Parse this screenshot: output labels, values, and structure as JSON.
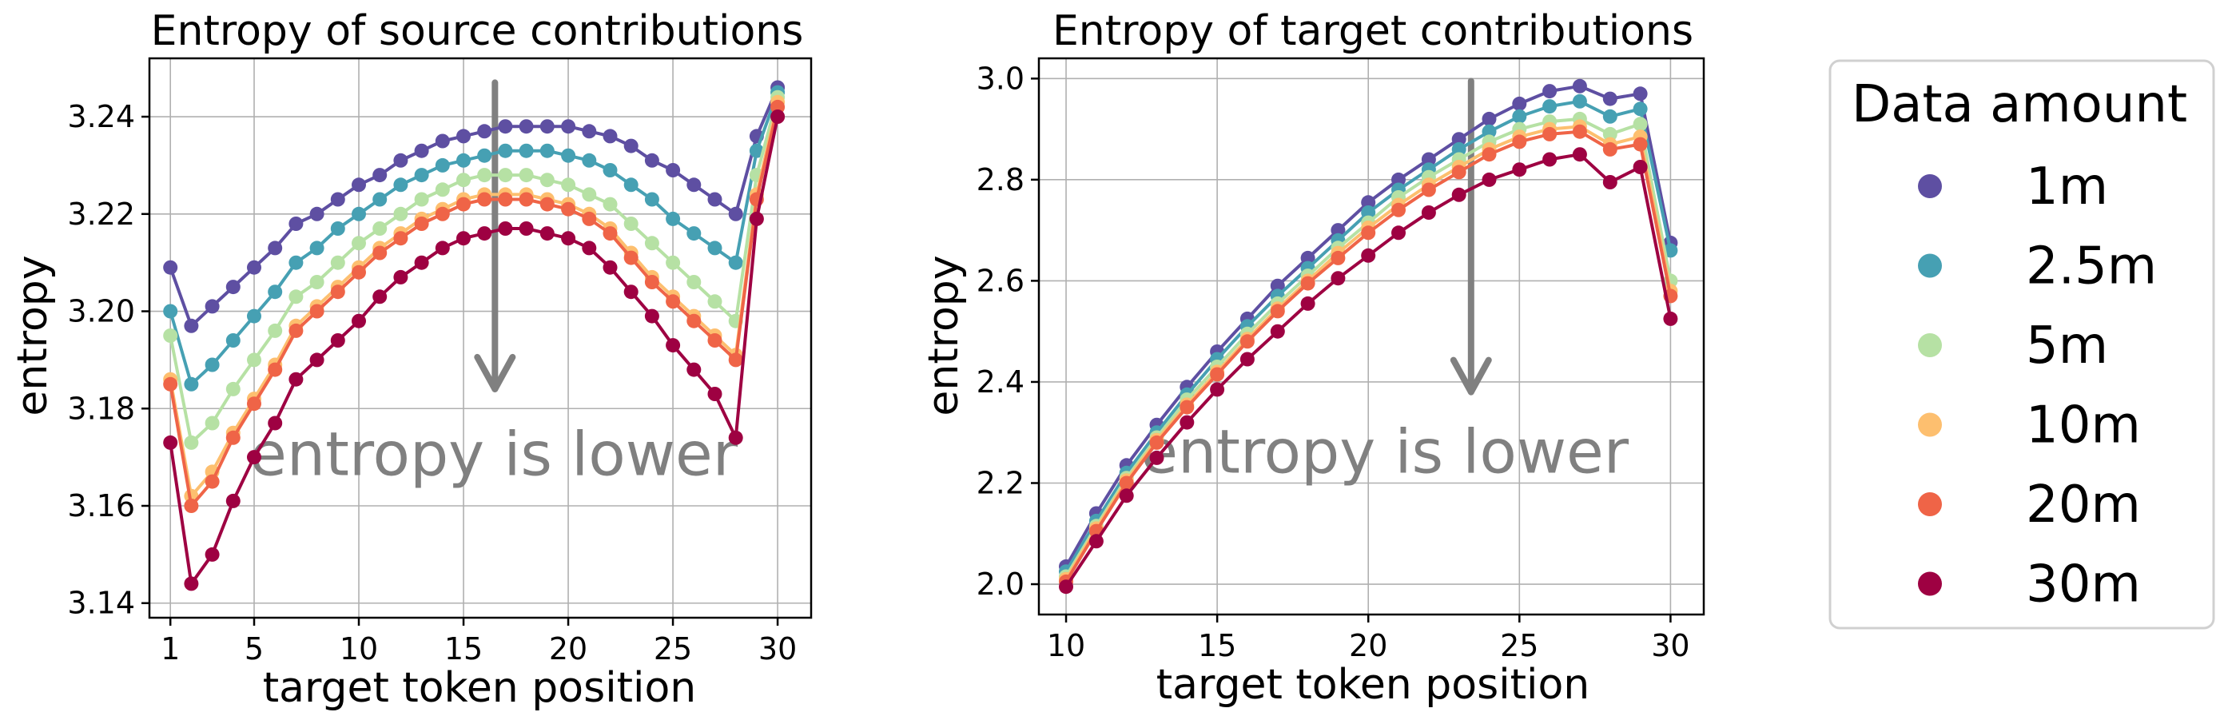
{
  "chart_data": [
    {
      "type": "line",
      "title": "Entropy of source contributions",
      "xlabel": "target token position",
      "ylabel": "entropy",
      "xlim": [
        0,
        31.6
      ],
      "ylim": [
        3.137,
        3.252
      ],
      "xticks": [
        1,
        5,
        10,
        15,
        20,
        25,
        30
      ],
      "yticks": [
        3.14,
        3.16,
        3.18,
        3.2,
        3.22,
        3.24
      ],
      "ytick_labels": [
        "3.14",
        "3.16",
        "3.18",
        "3.20",
        "3.22",
        "3.24"
      ],
      "grid": true,
      "annotation": {
        "text": "entropy is lower",
        "arrow_x": 16.5,
        "arrow_from": 3.247,
        "arrow_to": 3.184
      },
      "x": [
        1,
        2,
        3,
        4,
        5,
        6,
        7,
        8,
        9,
        10,
        11,
        12,
        13,
        14,
        15,
        16,
        17,
        18,
        19,
        20,
        21,
        22,
        23,
        24,
        25,
        26,
        27,
        28,
        29,
        30
      ],
      "series": [
        {
          "name": "1m",
          "values": [
            3.209,
            3.197,
            3.201,
            3.205,
            3.209,
            3.213,
            3.218,
            3.22,
            3.223,
            3.226,
            3.228,
            3.231,
            3.233,
            3.235,
            3.236,
            3.237,
            3.238,
            3.238,
            3.238,
            3.238,
            3.237,
            3.236,
            3.234,
            3.231,
            3.229,
            3.226,
            3.223,
            3.22,
            3.236,
            3.246
          ]
        },
        {
          "name": "2.5m",
          "values": [
            3.2,
            3.185,
            3.189,
            3.194,
            3.199,
            3.204,
            3.21,
            3.213,
            3.217,
            3.22,
            3.223,
            3.226,
            3.228,
            3.23,
            3.231,
            3.232,
            3.233,
            3.233,
            3.233,
            3.232,
            3.231,
            3.229,
            3.226,
            3.223,
            3.219,
            3.216,
            3.213,
            3.21,
            3.233,
            3.245
          ]
        },
        {
          "name": "5m",
          "values": [
            3.195,
            3.173,
            3.177,
            3.184,
            3.19,
            3.196,
            3.203,
            3.206,
            3.21,
            3.214,
            3.217,
            3.22,
            3.223,
            3.225,
            3.227,
            3.228,
            3.228,
            3.228,
            3.227,
            3.226,
            3.224,
            3.222,
            3.218,
            3.214,
            3.21,
            3.206,
            3.202,
            3.198,
            3.228,
            3.244
          ]
        },
        {
          "name": "10m",
          "values": [
            3.186,
            3.162,
            3.167,
            3.175,
            3.182,
            3.189,
            3.197,
            3.201,
            3.205,
            3.209,
            3.213,
            3.216,
            3.219,
            3.221,
            3.223,
            3.224,
            3.224,
            3.224,
            3.223,
            3.222,
            3.22,
            3.217,
            3.212,
            3.207,
            3.203,
            3.199,
            3.195,
            3.191,
            3.224,
            3.243
          ]
        },
        {
          "name": "20m",
          "values": [
            3.185,
            3.16,
            3.165,
            3.174,
            3.181,
            3.188,
            3.196,
            3.2,
            3.204,
            3.208,
            3.212,
            3.215,
            3.218,
            3.22,
            3.222,
            3.223,
            3.223,
            3.223,
            3.222,
            3.221,
            3.219,
            3.216,
            3.211,
            3.206,
            3.202,
            3.198,
            3.194,
            3.19,
            3.223,
            3.242
          ]
        },
        {
          "name": "30m",
          "values": [
            3.173,
            3.144,
            3.15,
            3.161,
            3.17,
            3.177,
            3.186,
            3.19,
            3.194,
            3.198,
            3.203,
            3.207,
            3.21,
            3.213,
            3.215,
            3.216,
            3.217,
            3.217,
            3.216,
            3.215,
            3.213,
            3.209,
            3.204,
            3.199,
            3.193,
            3.188,
            3.183,
            3.174,
            3.219,
            3.24
          ]
        }
      ]
    },
    {
      "type": "line",
      "title": "Entropy of target contributions",
      "xlabel": "target token position",
      "ylabel": "entropy",
      "xlim": [
        9.1,
        31.1
      ],
      "ylim": [
        1.94,
        3.04
      ],
      "xticks": [
        10,
        15,
        20,
        25,
        30
      ],
      "yticks": [
        2.0,
        2.2,
        2.4,
        2.6,
        2.8,
        3.0
      ],
      "ytick_labels": [
        "2.0",
        "2.2",
        "2.4",
        "2.6",
        "2.8",
        "3.0"
      ],
      "grid": true,
      "annotation": {
        "text": "entropy is lower",
        "arrow_x": 23.4,
        "arrow_from": 2.995,
        "arrow_to": 2.38
      },
      "x": [
        10,
        11,
        12,
        13,
        14,
        15,
        16,
        17,
        18,
        19,
        20,
        21,
        22,
        23,
        24,
        25,
        26,
        27,
        28,
        29,
        30
      ],
      "series": [
        {
          "name": "1m",
          "values": [
            2.035,
            2.14,
            2.235,
            2.315,
            2.39,
            2.46,
            2.525,
            2.59,
            2.645,
            2.7,
            2.755,
            2.8,
            2.84,
            2.88,
            2.92,
            2.95,
            2.975,
            2.985,
            2.96,
            2.97,
            2.675
          ]
        },
        {
          "name": "2.5m",
          "values": [
            2.025,
            2.125,
            2.22,
            2.3,
            2.375,
            2.445,
            2.51,
            2.57,
            2.625,
            2.68,
            2.735,
            2.78,
            2.82,
            2.86,
            2.895,
            2.925,
            2.945,
            2.955,
            2.925,
            2.94,
            2.66
          ]
        },
        {
          "name": "5m",
          "values": [
            2.015,
            2.115,
            2.21,
            2.29,
            2.365,
            2.43,
            2.495,
            2.555,
            2.61,
            2.665,
            2.715,
            2.765,
            2.805,
            2.84,
            2.875,
            2.9,
            2.915,
            2.92,
            2.89,
            2.91,
            2.6
          ]
        },
        {
          "name": "10m",
          "values": [
            2.01,
            2.11,
            2.205,
            2.285,
            2.355,
            2.42,
            2.485,
            2.545,
            2.6,
            2.655,
            2.705,
            2.75,
            2.79,
            2.825,
            2.86,
            2.885,
            2.9,
            2.905,
            2.87,
            2.885,
            2.58
          ]
        },
        {
          "name": "20m",
          "values": [
            2.005,
            2.105,
            2.2,
            2.28,
            2.35,
            2.415,
            2.48,
            2.54,
            2.595,
            2.645,
            2.695,
            2.74,
            2.78,
            2.815,
            2.85,
            2.875,
            2.89,
            2.895,
            2.86,
            2.87,
            2.57
          ]
        },
        {
          "name": "30m",
          "values": [
            1.995,
            2.085,
            2.175,
            2.25,
            2.32,
            2.385,
            2.445,
            2.5,
            2.555,
            2.605,
            2.65,
            2.695,
            2.735,
            2.77,
            2.8,
            2.82,
            2.84,
            2.85,
            2.795,
            2.825,
            2.525
          ]
        }
      ]
    }
  ],
  "legend": {
    "title": "Data amount",
    "items": [
      {
        "label": "1m",
        "color": "#5e4fa2"
      },
      {
        "label": "2.5m",
        "color": "#46a0b3"
      },
      {
        "label": "5m",
        "color": "#b6e1a4"
      },
      {
        "label": "10m",
        "color": "#fdbf6f"
      },
      {
        "label": "20m",
        "color": "#ef6447"
      },
      {
        "label": "30m",
        "color": "#9e0142"
      }
    ]
  },
  "colors": {
    "grid": "#b0b0b0",
    "axis": "#000000",
    "annotation": "#808080"
  }
}
